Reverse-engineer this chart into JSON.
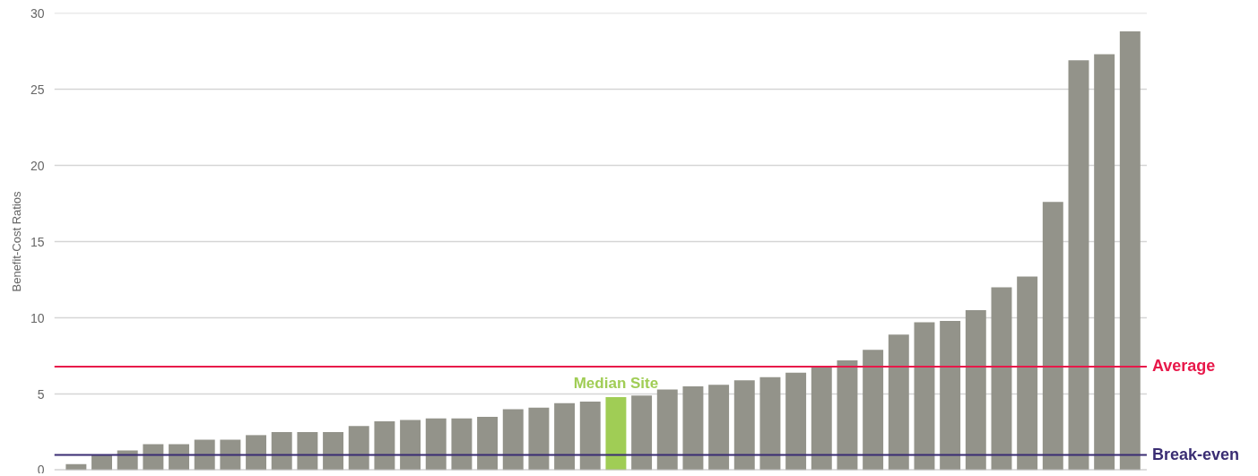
{
  "chart_data": {
    "type": "bar",
    "ylabel": "Benefit-Cost Ratios",
    "categories": [
      null,
      null,
      null,
      null,
      null,
      null,
      null,
      null,
      null,
      null,
      null,
      null,
      null,
      null,
      null,
      null,
      null,
      null,
      null,
      null,
      null,
      null,
      null,
      null,
      null,
      null,
      null,
      null,
      null,
      null,
      null,
      null,
      null,
      null,
      null,
      null,
      null,
      null,
      null,
      null,
      null,
      null
    ],
    "values": [
      0.4,
      1.0,
      1.3,
      1.7,
      1.7,
      2.0,
      2.0,
      2.3,
      2.5,
      2.5,
      2.5,
      2.9,
      3.2,
      3.3,
      3.4,
      3.4,
      3.5,
      4.0,
      4.1,
      4.4,
      4.5,
      4.8,
      4.9,
      5.3,
      5.5,
      5.6,
      5.9,
      6.1,
      6.4,
      6.8,
      7.2,
      7.9,
      8.9,
      9.7,
      9.8,
      10.5,
      12.0,
      12.7,
      17.6,
      26.9,
      27.3,
      28.8
    ],
    "colors": [
      "#93938a",
      "#93938a",
      "#93938a",
      "#93938a",
      "#93938a",
      "#93938a",
      "#93938a",
      "#93938a",
      "#93938a",
      "#93938a",
      "#93938a",
      "#93938a",
      "#93938a",
      "#93938a",
      "#93938a",
      "#93938a",
      "#93938a",
      "#93938a",
      "#93938a",
      "#93938a",
      "#93938a",
      "#a0cd55",
      "#93938a",
      "#93938a",
      "#93938a",
      "#93938a",
      "#93938a",
      "#93938a",
      "#93938a",
      "#93938a",
      "#93938a",
      "#93938a",
      "#93938a",
      "#93938a",
      "#93938a",
      "#93938a",
      "#93938a",
      "#93938a",
      "#93938a",
      "#93938a",
      "#93938a",
      "#93938a"
    ],
    "ylim": [
      0,
      30
    ],
    "yticks": [
      0,
      5,
      10,
      15,
      20,
      25,
      30
    ],
    "grid": "y",
    "ref_lines": [
      {
        "axis": "y",
        "value": 6.8,
        "label": "Average",
        "color": "#e8184a"
      },
      {
        "axis": "y",
        "value": 1,
        "label": "Break-even",
        "color": "#3a2d73"
      }
    ],
    "annotations": [
      {
        "text": "Median Site",
        "y": 4.8
      }
    ]
  }
}
